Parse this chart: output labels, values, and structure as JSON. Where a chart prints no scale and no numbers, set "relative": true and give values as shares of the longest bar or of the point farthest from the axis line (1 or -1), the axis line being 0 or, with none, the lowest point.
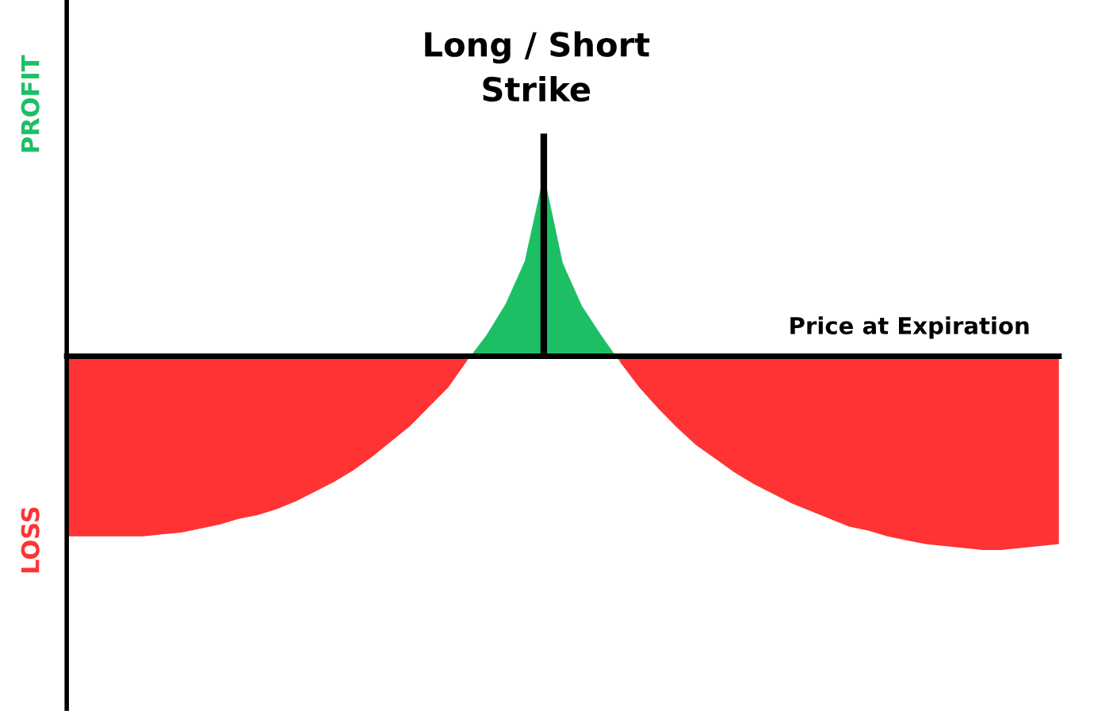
{
  "chart_data": {
    "type": "area",
    "relative": true,
    "xlabel": "Price at Expiration",
    "annotations": [
      "PROFIT",
      "LOSS"
    ],
    "categories": [
      null,
      null,
      null,
      null,
      null,
      null,
      null,
      null,
      null,
      null,
      null,
      null,
      null,
      null,
      null,
      null,
      null,
      null,
      null,
      null,
      null,
      null,
      null,
      null,
      null,
      null,
      null,
      null,
      null,
      null,
      null,
      null,
      null,
      null,
      null,
      null,
      null,
      null,
      null,
      null,
      null,
      null,
      null,
      null,
      null,
      null,
      null,
      null,
      null,
      null,
      null,
      null,
      null
    ],
    "series": [
      {
        "color": "#ff3333",
        "values": [
          -0.93,
          -0.93,
          -0.93,
          -0.93,
          -0.93,
          -0.92,
          -0.91,
          -0.89,
          -0.87,
          -0.84,
          -0.82,
          -0.79,
          -0.75,
          -0.7,
          -0.65,
          -0.59,
          -0.52,
          -0.44,
          -0.36,
          -0.26,
          -0.16,
          -0.02,
          null,
          null,
          null,
          null,
          null,
          null,
          null,
          -0.03,
          -0.16,
          -0.27,
          -0.37,
          -0.46,
          -0.53,
          -0.6,
          -0.66,
          -0.71,
          -0.76,
          -0.8,
          -0.84,
          -0.88,
          -0.9,
          -0.93,
          -0.95,
          -0.97,
          -0.98,
          -0.99,
          -1.0,
          -1.0,
          -0.99,
          -0.98,
          -0.97
        ]
      },
      {
        "color": "#1dbf65",
        "values": [
          null,
          null,
          null,
          null,
          null,
          null,
          null,
          null,
          null,
          null,
          null,
          null,
          null,
          null,
          null,
          null,
          null,
          null,
          null,
          null,
          null,
          -0.02,
          0.11,
          0.27,
          0.49,
          0.94,
          0.48,
          0.26,
          0.11,
          -0.03,
          null,
          null,
          null,
          null,
          null,
          null,
          null,
          null,
          null,
          null,
          null,
          null,
          null,
          null,
          null,
          null,
          null,
          null,
          null,
          null,
          null,
          null,
          null
        ]
      }
    ],
    "ref_lines": [
      {
        "axis": "x",
        "label": "Long / Short\nStrike",
        "color": "#000000"
      }
    ],
    "grid": false,
    "legend": false
  }
}
